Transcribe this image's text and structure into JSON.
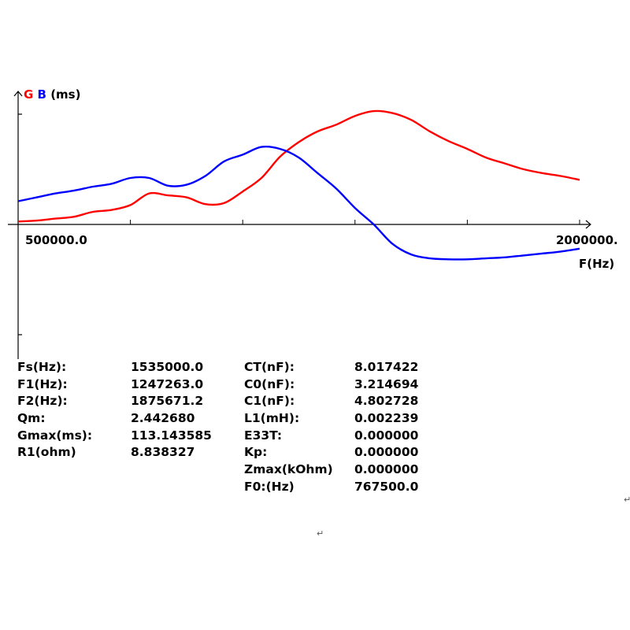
{
  "chart_data": {
    "type": "line",
    "y_label_parts": [
      {
        "text": "G",
        "color": "#ff0000"
      },
      {
        "text": "B",
        "color": "#0000ff"
      },
      {
        "text": "(ms)",
        "color": "#000000"
      }
    ],
    "xlabel": "F(Hz)",
    "x_start_label": "500000.0",
    "x_end_label": "2000000.",
    "xlim": [
      500000,
      2000000
    ],
    "ylim": [
      -120,
      120
    ],
    "grid": false,
    "colors": {
      "G": "#ff0000",
      "B": "#0000ff"
    },
    "series": [
      {
        "name": "G",
        "x": [
          500000,
          550000,
          600000,
          650000,
          700000,
          750000,
          800000,
          850000,
          900000,
          950000,
          1000000,
          1050000,
          1100000,
          1150000,
          1200000,
          1250000,
          1300000,
          1350000,
          1400000,
          1450000,
          1500000,
          1550000,
          1600000,
          1650000,
          1700000,
          1750000,
          1800000,
          1850000,
          1900000,
          1950000,
          2000000
        ],
        "values": [
          3,
          4,
          6,
          8,
          13,
          15,
          20,
          32,
          30,
          28,
          21,
          22,
          34,
          48,
          70,
          85,
          96,
          103,
          112,
          117,
          115,
          108,
          96,
          86,
          78,
          69,
          63,
          57,
          53,
          50,
          46
        ]
      },
      {
        "name": "B",
        "x": [
          500000,
          550000,
          600000,
          650000,
          700000,
          750000,
          800000,
          850000,
          900000,
          950000,
          1000000,
          1050000,
          1100000,
          1150000,
          1200000,
          1250000,
          1300000,
          1350000,
          1400000,
          1450000,
          1500000,
          1550000,
          1600000,
          1650000,
          1700000,
          1750000,
          1800000,
          1850000,
          1900000,
          1950000,
          2000000
        ],
        "values": [
          24,
          28,
          32,
          35,
          39,
          42,
          48,
          48,
          40,
          41,
          50,
          65,
          72,
          80,
          78,
          69,
          53,
          37,
          17,
          0,
          -20,
          -31,
          -35,
          -36,
          -36,
          -35,
          -34,
          -32,
          -30,
          -28,
          -25
        ]
      }
    ]
  },
  "params": {
    "left": [
      {
        "key": "Fs(Hz):",
        "value": "1535000.0"
      },
      {
        "key": "F1(Hz):",
        "value": "1247263.0"
      },
      {
        "key": "F2(Hz):",
        "value": "1875671.2"
      },
      {
        "key": "Qm:",
        "value": "2.442680"
      },
      {
        "key": "Gmax(ms):",
        "value": "113.143585"
      },
      {
        "key": "R1(ohm)",
        "value": "8.838327"
      }
    ],
    "right": [
      {
        "key": "CT(nF):",
        "value": "8.017422"
      },
      {
        "key": "C0(nF):",
        "value": "3.214694"
      },
      {
        "key": "C1(nF):",
        "value": "4.802728"
      },
      {
        "key": "L1(mH):",
        "value": "0.002239"
      },
      {
        "key": "E33T:",
        "value": "0.000000"
      },
      {
        "key": "Kp:",
        "value": "0.000000"
      },
      {
        "key": "Zmax(kOhm)",
        "value": "0.000000"
      },
      {
        "key": "F0:(Hz)",
        "value": "767500.0"
      }
    ]
  },
  "marks": {
    "return_symbol": "↵"
  }
}
